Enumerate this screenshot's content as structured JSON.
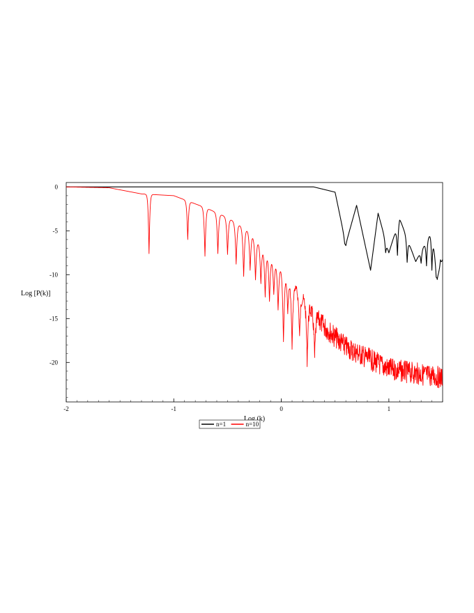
{
  "chart_data": {
    "type": "line",
    "xlabel": "Log (k)",
    "ylabel": "Log [P(k)]",
    "xlim": [
      -2,
      1.5
    ],
    "ylim": [
      -24.5,
      0.5
    ],
    "xticks": [
      -2,
      -1,
      0,
      1
    ],
    "yticks": [
      0,
      -5,
      -10,
      -15,
      -20
    ],
    "grid": false,
    "legend_position": "bottom-center",
    "series": [
      {
        "name": "n=1",
        "color": "#000000",
        "envelope_points": [
          [
            -2,
            0
          ],
          [
            0.3,
            0
          ],
          [
            0.5,
            -0.6
          ],
          [
            0.6,
            -6.5
          ],
          [
            0.7,
            -2.1
          ],
          [
            0.83,
            -9.5
          ],
          [
            0.9,
            -3.0
          ],
          [
            1.0,
            -7.5
          ],
          [
            1.1,
            -3.6
          ],
          [
            1.25,
            -8.5
          ],
          [
            1.4,
            -5.0
          ],
          [
            1.45,
            -10.3
          ],
          [
            1.5,
            -8.3
          ]
        ],
        "minima_x": [
          0.59,
          0.83,
          0.97,
          1.08,
          1.17,
          1.24,
          1.3,
          1.35,
          1.4,
          1.44,
          1.48
        ],
        "minima_y": [
          -6.5,
          -9.5,
          -7.5,
          -7.8,
          -8.6,
          -8.2,
          -8.7,
          -9.0,
          -9.5,
          -10.3,
          -8.3
        ]
      },
      {
        "name": "n=10",
        "color": "#ff0000",
        "envelope_points": [
          [
            -2,
            0
          ],
          [
            -1.6,
            -0.1
          ],
          [
            -1.3,
            -0.8
          ],
          [
            -1.0,
            -1.0
          ],
          [
            -0.7,
            -2.4
          ],
          [
            -0.5,
            -3.5
          ],
          [
            -0.3,
            -5.0
          ],
          [
            0,
            -9.0
          ],
          [
            0.3,
            -13.5
          ],
          [
            0.6,
            -17.0
          ],
          [
            1.0,
            -19.5
          ],
          [
            1.5,
            -20.5
          ]
        ],
        "minima_x": [
          -1.23,
          -0.87,
          -0.71,
          -0.59,
          -0.5,
          -0.42,
          -0.35,
          -0.29,
          -0.24,
          -0.19,
          -0.15,
          -0.11,
          -0.07,
          -0.03,
          0.02,
          0.06,
          0.1,
          0.17,
          0.24,
          0.31
        ],
        "minima_y": [
          -7.6,
          -6.0,
          -7.9,
          -7.6,
          -7.7,
          -8.8,
          -10.2,
          -9.5,
          -10.6,
          -11.0,
          -12.5,
          -13.0,
          -12.2,
          -14.0,
          -17.5,
          -14.0,
          -18.0,
          -16.5,
          -19.0,
          -18.5
        ],
        "noise_amplitude": 2.5
      }
    ]
  },
  "legend": {
    "items": [
      {
        "label": "n=1",
        "color": "#000000"
      },
      {
        "label": "n=10",
        "color": "#ff0000"
      }
    ]
  }
}
